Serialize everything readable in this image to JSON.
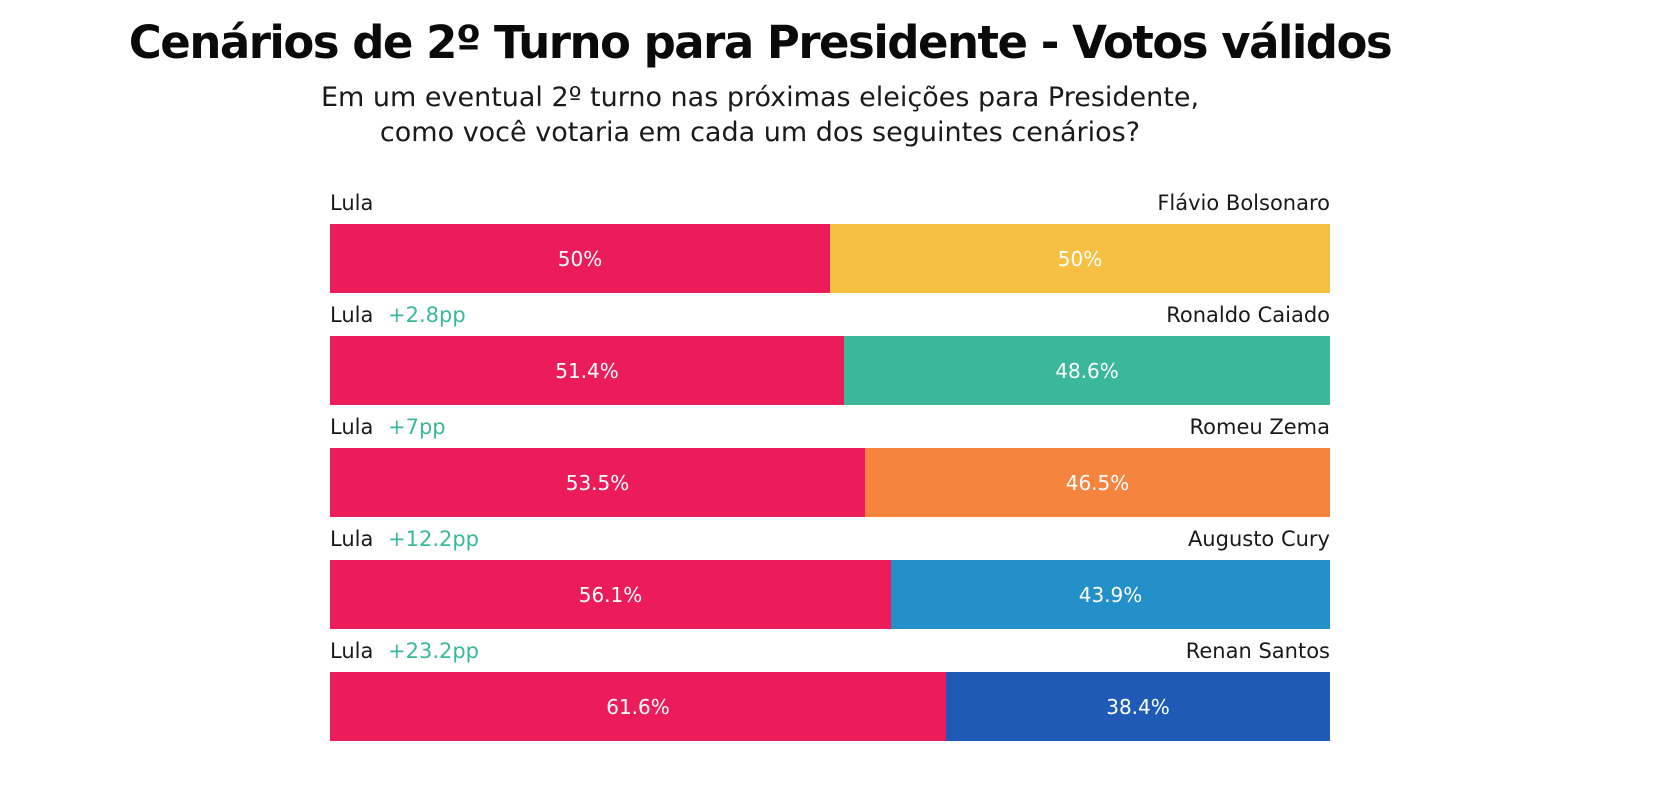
{
  "title": "Cenários de 2º Turno para Presidente - Votos válidos",
  "subtitle_line1": "Em um eventual 2º turno nas próximas eleições para Presidente,",
  "subtitle_line2": "como você votaria em cada um dos seguintes cenários?",
  "colors": {
    "lula": "#ec1c5b",
    "delta_text": "#3bb89a"
  },
  "chart_data": {
    "type": "bar",
    "orientation": "horizontal-stacked-100",
    "title": "Cenários de 2º Turno para Presidente - Votos válidos",
    "scenarios": [
      {
        "left_name": "Lula",
        "left_value": 50,
        "left_label": "50%",
        "delta": "",
        "right_name": "Flávio Bolsonaro",
        "right_value": 50,
        "right_label": "50%",
        "right_color": "#f6c042"
      },
      {
        "left_name": "Lula",
        "left_value": 51.4,
        "left_label": "51.4%",
        "delta": "+2.8pp",
        "right_name": "Ronaldo Caiado",
        "right_value": 48.6,
        "right_label": "48.6%",
        "right_color": "#3bb89a"
      },
      {
        "left_name": "Lula",
        "left_value": 53.5,
        "left_label": "53.5%",
        "delta": "+7pp",
        "right_name": "Romeu Zema",
        "right_value": 46.5,
        "right_label": "46.5%",
        "right_color": "#f5843f"
      },
      {
        "left_name": "Lula",
        "left_value": 56.1,
        "left_label": "56.1%",
        "delta": "+12.2pp",
        "right_name": "Augusto Cury",
        "right_value": 43.9,
        "right_label": "43.9%",
        "right_color": "#2390c9"
      },
      {
        "left_name": "Lula",
        "left_value": 61.6,
        "left_label": "61.6%",
        "delta": "+23.2pp",
        "right_name": "Renan Santos",
        "right_value": 38.4,
        "right_label": "38.4%",
        "right_color": "#1f5bb6"
      }
    ]
  }
}
